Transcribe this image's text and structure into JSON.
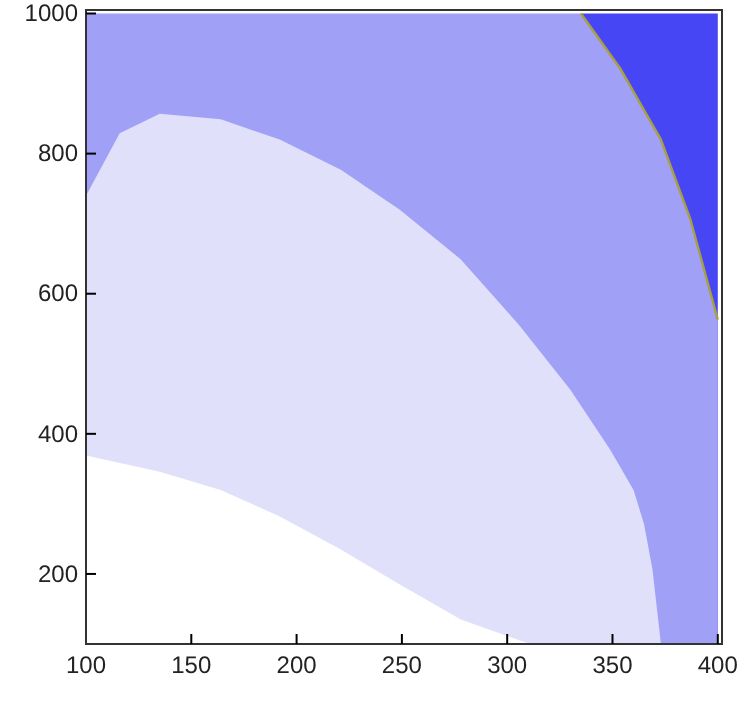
{
  "chart_data": {
    "type": "area",
    "xlim": [
      100,
      402
    ],
    "ylim": [
      100,
      1005
    ],
    "xticks": [
      100,
      150,
      200,
      250,
      300,
      350,
      400
    ],
    "yticks": [
      200,
      400,
      600,
      800,
      1000
    ],
    "series": [
      {
        "color": "#4646f4",
        "x": [
          335,
          354,
          373,
          387,
          400
        ],
        "values": [
          1000,
          1000,
          1000,
          1000,
          1000
        ]
      },
      {
        "color": "#a0a0f6",
        "x": [
          100,
          335,
          354,
          373,
          387,
          400
        ],
        "values": [
          1000,
          1000,
          920,
          820,
          706,
          563
        ]
      },
      {
        "color": "#e0e0fb",
        "x": [
          100,
          116,
          135,
          164,
          192,
          221,
          249,
          278,
          306,
          330,
          349,
          360,
          365,
          369,
          373
        ],
        "values": [
          740,
          829,
          857,
          849,
          820,
          777,
          720,
          649,
          554,
          463,
          377,
          320,
          271,
          206,
          100
        ]
      },
      {
        "color": "#ffffff",
        "x": [
          100,
          135,
          164,
          192,
          221,
          249,
          278,
          306,
          311
        ],
        "values": [
          369,
          346,
          320,
          282,
          235,
          185,
          135,
          105,
          100
        ]
      },
      {
        "type": "line",
        "color": "#a8a040",
        "x": [
          335,
          354,
          373,
          387,
          400
        ],
        "values": [
          1000,
          920,
          820,
          706,
          563
        ]
      }
    ]
  }
}
